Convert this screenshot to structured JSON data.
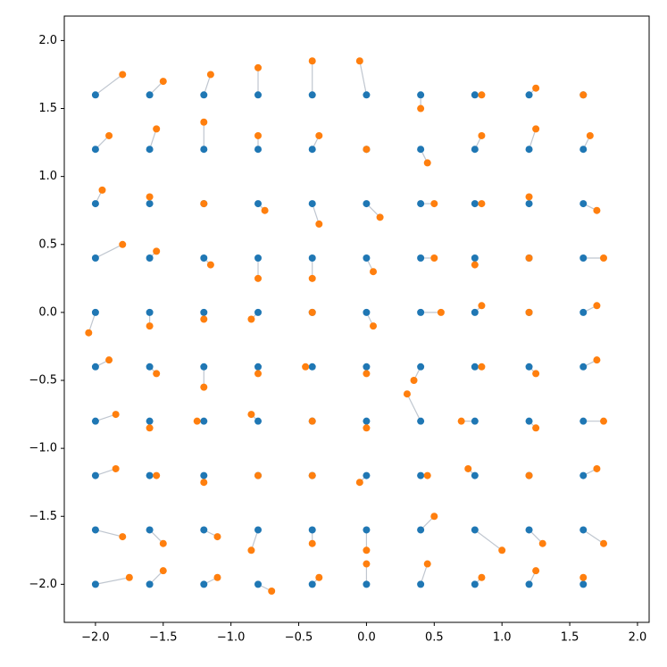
{
  "chart_data": {
    "type": "scatter",
    "xlim": [
      -2.23,
      2.086
    ],
    "ylim": [
      -2.28,
      2.18
    ],
    "xticks": [
      {
        "value": -2.0,
        "label": "−2.0"
      },
      {
        "value": -1.5,
        "label": "−1.5"
      },
      {
        "value": -1.0,
        "label": "−1.0"
      },
      {
        "value": -0.5,
        "label": "−0.5"
      },
      {
        "value": 0.0,
        "label": "0.0"
      },
      {
        "value": 0.5,
        "label": "0.5"
      },
      {
        "value": 1.0,
        "label": "1.0"
      },
      {
        "value": 1.5,
        "label": "1.5"
      },
      {
        "value": 2.0,
        "label": "2.0"
      }
    ],
    "yticks": [
      {
        "value": -2.0,
        "label": "−2.0"
      },
      {
        "value": -1.5,
        "label": "−1.5"
      },
      {
        "value": -1.0,
        "label": "−1.0"
      },
      {
        "value": -0.5,
        "label": "−0.5"
      },
      {
        "value": 0.0,
        "label": "0.0"
      },
      {
        "value": 0.5,
        "label": "0.5"
      },
      {
        "value": 1.0,
        "label": "1.0"
      },
      {
        "value": 1.5,
        "label": "1.5"
      },
      {
        "value": 2.0,
        "label": "2.0"
      }
    ],
    "link_color": "#b0b8c4",
    "series": [
      {
        "color": "#1f77b4",
        "x": [
          -2.0,
          -1.6,
          -1.2,
          -0.8,
          -0.4,
          0.0,
          0.4,
          0.8,
          1.2,
          1.6,
          -2.0,
          -1.6,
          -1.2,
          -0.8,
          -0.4,
          0.0,
          0.4,
          0.8,
          1.2,
          1.6,
          -2.0,
          -1.6,
          -1.2,
          -0.8,
          -0.4,
          0.0,
          0.4,
          0.8,
          1.2,
          1.6,
          -2.0,
          -1.6,
          -1.2,
          -0.8,
          -0.4,
          0.0,
          0.4,
          0.8,
          1.2,
          1.6,
          -2.0,
          -1.6,
          -1.2,
          -0.8,
          -0.4,
          0.0,
          0.4,
          0.8,
          1.2,
          1.6,
          -2.0,
          -1.6,
          -1.2,
          -0.8,
          -0.4,
          0.0,
          0.4,
          0.8,
          1.2,
          1.6,
          -2.0,
          -1.6,
          -1.2,
          -0.8,
          -0.4,
          0.0,
          0.4,
          0.8,
          1.2,
          1.6,
          -2.0,
          -1.6,
          -1.2,
          -0.8,
          -0.4,
          0.0,
          0.4,
          0.8,
          1.2,
          1.6,
          -2.0,
          -1.6,
          -1.2,
          -0.8,
          -0.4,
          0.0,
          0.4,
          0.8,
          1.2,
          1.6,
          -2.0,
          -1.6,
          -1.2,
          -0.8,
          -0.4,
          0.0,
          0.4,
          0.8,
          1.2,
          1.6
        ],
        "values": [
          1.6,
          1.6,
          1.6,
          1.6,
          1.6,
          1.6,
          1.6,
          1.6,
          1.6,
          1.6,
          1.2,
          1.2,
          1.2,
          1.2,
          1.2,
          1.2,
          1.2,
          1.2,
          1.2,
          1.2,
          0.8,
          0.8,
          0.8,
          0.8,
          0.8,
          0.8,
          0.8,
          0.8,
          0.8,
          0.8,
          0.4,
          0.4,
          0.4,
          0.4,
          0.4,
          0.4,
          0.4,
          0.4,
          0.4,
          0.4,
          0.0,
          0.0,
          0.0,
          0.0,
          0.0,
          0.0,
          0.0,
          0.0,
          0.0,
          0.0,
          -0.4,
          -0.4,
          -0.4,
          -0.4,
          -0.4,
          -0.4,
          -0.4,
          -0.4,
          -0.4,
          -0.4,
          -0.8,
          -0.8,
          -0.8,
          -0.8,
          -0.8,
          -0.8,
          -0.8,
          -0.8,
          -0.8,
          -0.8,
          -1.2,
          -1.2,
          -1.2,
          -1.2,
          -1.2,
          -1.2,
          -1.2,
          -1.2,
          -1.2,
          -1.2,
          -1.6,
          -1.6,
          -1.6,
          -1.6,
          -1.6,
          -1.6,
          -1.6,
          -1.6,
          -1.6,
          -1.6,
          -2.0,
          -2.0,
          -2.0,
          -2.0,
          -2.0,
          -2.0,
          -2.0,
          -2.0,
          -2.0,
          -2.0
        ]
      },
      {
        "color": "#ff7f0e",
        "x": [
          -1.8,
          -1.5,
          -1.15,
          -0.8,
          -0.4,
          -0.05,
          0.4,
          0.85,
          1.25,
          1.6,
          -1.9,
          -1.55,
          -1.2,
          -0.8,
          -0.35,
          0.0,
          0.45,
          0.85,
          1.25,
          1.65,
          -1.95,
          -1.6,
          -1.2,
          -0.75,
          -0.35,
          0.1,
          0.5,
          0.85,
          1.2,
          1.7,
          -1.8,
          -1.55,
          -1.15,
          -0.8,
          -0.4,
          0.05,
          0.5,
          0.8,
          1.2,
          1.75,
          -2.05,
          -1.6,
          -1.2,
          -0.85,
          -0.4,
          0.05,
          0.55,
          0.85,
          1.2,
          1.7,
          -1.9,
          -1.55,
          -1.2,
          -0.8,
          -0.45,
          0.0,
          0.35,
          0.85,
          1.25,
          1.7,
          -1.85,
          -1.6,
          -1.25,
          -0.85,
          -0.4,
          0.0,
          0.3,
          0.7,
          1.25,
          1.75,
          -1.85,
          -1.55,
          -1.2,
          -0.8,
          -0.4,
          -0.05,
          0.45,
          0.75,
          1.2,
          1.7,
          -1.8,
          -1.5,
          -1.1,
          -0.85,
          -0.4,
          0.0,
          0.5,
          1.0,
          1.3,
          1.75,
          -1.75,
          -1.5,
          -1.1,
          -0.7,
          -0.35,
          0.0,
          0.45,
          0.85,
          1.25,
          1.6
        ],
        "values": [
          1.75,
          1.7,
          1.75,
          1.8,
          1.85,
          1.85,
          1.5,
          1.6,
          1.65,
          1.6,
          1.3,
          1.35,
          1.4,
          1.3,
          1.3,
          1.2,
          1.1,
          1.3,
          1.35,
          1.3,
          0.9,
          0.85,
          0.8,
          0.75,
          0.65,
          0.7,
          0.8,
          0.8,
          0.85,
          0.75,
          0.5,
          0.45,
          0.35,
          0.25,
          0.25,
          0.3,
          0.4,
          0.35,
          0.4,
          0.4,
          -0.15,
          -0.1,
          -0.05,
          -0.05,
          0.0,
          -0.1,
          0.0,
          0.05,
          0.0,
          0.05,
          -0.35,
          -0.45,
          -0.55,
          -0.45,
          -0.4,
          -0.45,
          -0.5,
          -0.4,
          -0.45,
          -0.35,
          -0.75,
          -0.85,
          -0.8,
          -0.75,
          -0.8,
          -0.85,
          -0.6,
          -0.8,
          -0.85,
          -0.8,
          -1.15,
          -1.2,
          -1.25,
          -1.2,
          -1.2,
          -1.25,
          -1.2,
          -1.15,
          -1.2,
          -1.15,
          -1.65,
          -1.7,
          -1.65,
          -1.75,
          -1.7,
          -1.75,
          -1.5,
          -1.75,
          -1.7,
          -1.7,
          -1.95,
          -1.9,
          -1.95,
          -2.05,
          -1.95,
          -1.85,
          -1.85,
          -1.95,
          -1.9,
          -1.95
        ]
      }
    ]
  }
}
